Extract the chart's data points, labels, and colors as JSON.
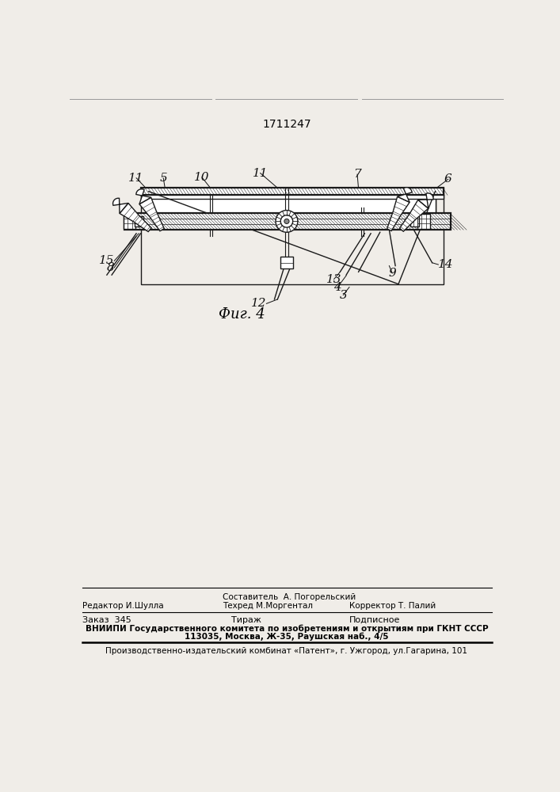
{
  "patent_number": "1711247",
  "fig_caption": "Фиг. 4",
  "bg_color": "#f0ede8",
  "footer": {
    "editor_label": "Редактор И.Шулла",
    "composer_label": "Составитель  А. Погорельский",
    "techred_label": "Техред М.Моргентал",
    "corrector_label": "Корректор Т. Палий",
    "order_label": "Заказ  345",
    "tirazh_label": "Тираж",
    "podpisnoe_label": "Подписное",
    "vniiipi_line1": "ВНИИПИ Государственного комитета по изобретениям и открытиям при ГКНТ СССР",
    "vniiipi_line2": "113035, Москва, Ж-35, Раушская наб., 4/5",
    "publisher": "Производственно-издательский комбинат «Патент», г. Ужгород, ул.Гагарина, 101"
  }
}
